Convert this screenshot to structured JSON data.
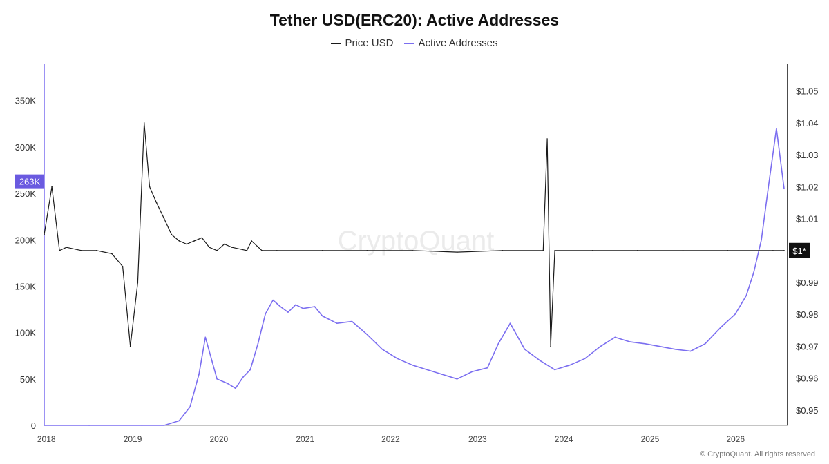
{
  "chart_data": {
    "type": "line",
    "title": "Tether USD(ERC20): Active Addresses",
    "legend": [
      "Price USD",
      "Active Addresses"
    ],
    "legend_position": "top-center",
    "watermark": "CryptoQuant",
    "copyright": "© CryptoQuant. All rights reserved",
    "x_tick_labels": [
      "2018",
      "2019",
      "2020",
      "2021",
      "2022",
      "2023",
      "2024",
      "2025",
      "2026"
    ],
    "x_range": [
      "2017-12-01",
      "2026-03-01"
    ],
    "y_left": {
      "ticks": [
        "0",
        "50K",
        "100K",
        "150K",
        "200K",
        "250K",
        "300K",
        "350K"
      ],
      "ylim": [
        0,
        390000
      ],
      "current_value_label": "263K",
      "current_value": 263000
    },
    "y_right": {
      "ticks": [
        "$0.95",
        "$0.96",
        "$0.97",
        "$0.98",
        "$0.99",
        "$1.01",
        "$1.02",
        "$1.03",
        "$1.04",
        "$1.05"
      ],
      "ylim": [
        0.9452,
        1.0586
      ],
      "current_value_label": "$1*",
      "current_value": 1.0
    },
    "grid": false,
    "series": [
      {
        "name": "Active Addresses",
        "axis": "left",
        "color": "#7b6ef0",
        "x": [
          "2017-12-01",
          "2018-06-01",
          "2019-01-01",
          "2019-04-01",
          "2019-06-01",
          "2019-07-15",
          "2019-08-20",
          "2019-09-15",
          "2019-11-01",
          "2019-12-15",
          "2020-01-15",
          "2020-02-15",
          "2020-03-15",
          "2020-04-15",
          "2020-05-15",
          "2020-06-15",
          "2020-07-15",
          "2020-08-15",
          "2020-09-15",
          "2020-10-15",
          "2020-12-01",
          "2021-01-01",
          "2021-03-01",
          "2021-05-01",
          "2021-07-01",
          "2021-09-01",
          "2021-11-01",
          "2022-01-01",
          "2022-03-01",
          "2022-05-01",
          "2022-07-01",
          "2022-09-01",
          "2022-11-01",
          "2022-12-15",
          "2023-02-01",
          "2023-04-01",
          "2023-06-01",
          "2023-08-01",
          "2023-10-01",
          "2023-12-01",
          "2024-02-01",
          "2024-04-01",
          "2024-06-01",
          "2024-08-01",
          "2024-10-01",
          "2024-12-01",
          "2025-02-01",
          "2025-04-01",
          "2025-06-01",
          "2025-08-01",
          "2025-09-15",
          "2025-10-15",
          "2025-11-15",
          "2025-12-15",
          "2026-01-15",
          "2026-02-15"
        ],
        "values": [
          0,
          0,
          0,
          0,
          5000,
          20000,
          55000,
          95000,
          50000,
          45000,
          40000,
          52000,
          60000,
          88000,
          120000,
          135000,
          128000,
          122000,
          130000,
          126000,
          128000,
          118000,
          110000,
          112000,
          98000,
          82000,
          72000,
          65000,
          60000,
          55000,
          50000,
          58000,
          62000,
          88000,
          110000,
          82000,
          70000,
          60000,
          65000,
          72000,
          85000,
          95000,
          90000,
          88000,
          85000,
          82000,
          80000,
          88000,
          105000,
          120000,
          140000,
          165000,
          200000,
          260000,
          320000,
          255000
        ]
      },
      {
        "name": "Price USD",
        "axis": "right",
        "color": "#1a1a1a",
        "x": [
          "2017-12-01",
          "2018-01-01",
          "2018-02-01",
          "2018-03-01",
          "2018-05-01",
          "2018-07-01",
          "2018-09-01",
          "2018-10-15",
          "2018-11-15",
          "2018-12-15",
          "2019-01-10",
          "2019-02-01",
          "2019-03-01",
          "2019-04-01",
          "2019-05-01",
          "2019-06-01",
          "2019-07-01",
          "2019-08-01",
          "2019-09-01",
          "2019-10-01",
          "2019-11-01",
          "2019-12-01",
          "2020-01-01",
          "2020-03-01",
          "2020-03-20",
          "2020-05-01",
          "2020-07-01",
          "2021-01-01",
          "2021-07-01",
          "2022-01-01",
          "2022-07-01",
          "2023-01-01",
          "2023-06-15",
          "2023-07-01",
          "2023-07-15",
          "2023-08-01",
          "2024-01-01",
          "2024-07-01",
          "2025-01-01",
          "2025-07-01",
          "2026-01-01",
          "2026-02-15"
        ],
        "values": [
          1.005,
          1.02,
          1.0,
          1.001,
          1.0,
          1.0,
          0.999,
          0.995,
          0.97,
          0.99,
          1.04,
          1.02,
          1.015,
          1.01,
          1.005,
          1.003,
          1.002,
          1.003,
          1.004,
          1.001,
          1.0,
          1.002,
          1.001,
          1.0,
          1.003,
          1.0,
          1.0,
          1.0,
          1.0,
          1.0,
          0.9995,
          1.0,
          1.0,
          1.035,
          0.97,
          1.0,
          1.0,
          1.0,
          1.0,
          1.0,
          1.0,
          1.0
        ]
      }
    ],
    "x_tick_positions": [
      0.003,
      0.119,
      0.235,
      0.351,
      0.466,
      0.583,
      0.699,
      0.815,
      0.93
    ]
  }
}
